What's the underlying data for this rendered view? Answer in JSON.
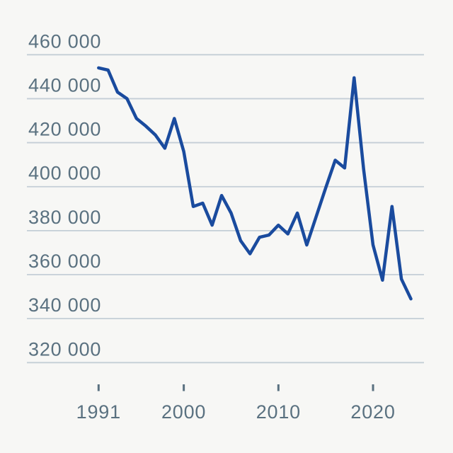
{
  "chart_data": {
    "type": "line",
    "title": "",
    "x": [
      1991,
      1992,
      1993,
      1994,
      1995,
      1996,
      1997,
      1998,
      1999,
      2000,
      2001,
      2002,
      2003,
      2004,
      2005,
      2006,
      2007,
      2008,
      2009,
      2010,
      2011,
      2012,
      2013,
      2014,
      2015,
      2016,
      2017,
      2018,
      2019,
      2020,
      2021,
      2022,
      2023,
      2024
    ],
    "values": [
      454000,
      453000,
      443000,
      440000,
      431000,
      427500,
      423500,
      417500,
      431000,
      416000,
      391000,
      392500,
      382500,
      396000,
      388000,
      375500,
      369500,
      377000,
      378000,
      382500,
      378500,
      388000,
      373500,
      386500,
      399500,
      412000,
      408500,
      449500,
      408000,
      373500,
      357500,
      391000,
      358000,
      349000
    ],
    "xlabel": "",
    "ylabel": "",
    "xlim": [
      1991,
      2024
    ],
    "ylim": [
      320000,
      460000
    ],
    "grid": "horizontal",
    "legend": "none",
    "yticks": [
      {
        "value": 460000,
        "label": "460 000"
      },
      {
        "value": 440000,
        "label": "440 000"
      },
      {
        "value": 420000,
        "label": "420 000"
      },
      {
        "value": 400000,
        "label": "400 000"
      },
      {
        "value": 380000,
        "label": "380 000"
      },
      {
        "value": 360000,
        "label": "360 000"
      },
      {
        "value": 340000,
        "label": "340 000"
      },
      {
        "value": 320000,
        "label": "320 000"
      }
    ],
    "xticks": [
      {
        "value": 1991,
        "label": "1991"
      },
      {
        "value": 2000,
        "label": "2000"
      },
      {
        "value": 2010,
        "label": "2010"
      },
      {
        "value": 2020,
        "label": "2020"
      }
    ],
    "colors": {
      "line": "#1a4b9e",
      "tick_text": "#5a7180",
      "gridline": "#c4ced6",
      "background": "#f7f7f5"
    }
  }
}
